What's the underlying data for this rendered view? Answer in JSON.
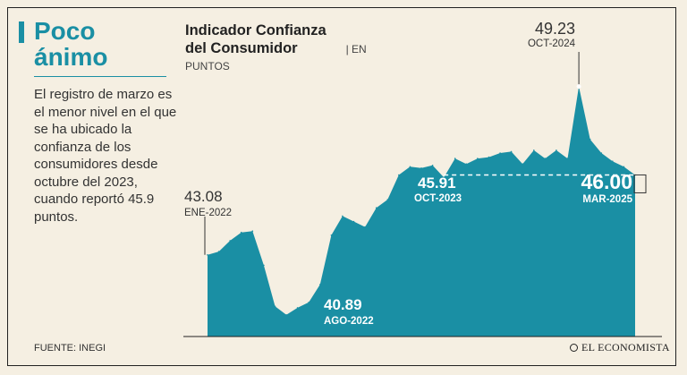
{
  "headline": "Poco ánimo",
  "description": "El registro de marzo es el menor nivel en el que se ha ubicado la confianza de los consumidores desde octubre del 2023, cuando reportó 45.9 puntos.",
  "chart_title": "Indicador Confianza del Consumidor",
  "chart_unit_a": "| EN",
  "chart_unit_b": "PUNTOS",
  "source": "FUENTE: INEGI",
  "brand": "EL ECONOMISTA",
  "colors": {
    "accent": "#1a8fa4",
    "area": "#1a8fa4",
    "background": "#f5efe2",
    "text": "#333333"
  },
  "chart_data": {
    "type": "area",
    "title": "Indicador Confianza del Consumidor",
    "ylabel": "PUNTOS",
    "ylim": [
      40.1,
      50.1
    ],
    "grid": false,
    "x": [
      "2022-01",
      "2022-02",
      "2022-03",
      "2022-04",
      "2022-05",
      "2022-06",
      "2022-07",
      "2022-08",
      "2022-09",
      "2022-10",
      "2022-11",
      "2022-12",
      "2023-01",
      "2023-02",
      "2023-03",
      "2023-04",
      "2023-05",
      "2023-06",
      "2023-07",
      "2023-08",
      "2023-09",
      "2023-10",
      "2023-11",
      "2023-12",
      "2024-01",
      "2024-02",
      "2024-03",
      "2024-04",
      "2024-05",
      "2024-06",
      "2024-07",
      "2024-08",
      "2024-09",
      "2024-10",
      "2024-11",
      "2024-12",
      "2025-01",
      "2025-02",
      "2025-03"
    ],
    "values": [
      43.08,
      43.2,
      43.6,
      43.9,
      43.95,
      42.7,
      41.2,
      40.89,
      41.15,
      41.35,
      42.0,
      43.8,
      44.5,
      44.3,
      44.1,
      44.8,
      45.1,
      46.0,
      46.3,
      46.25,
      46.35,
      45.91,
      46.6,
      46.4,
      46.6,
      46.65,
      46.8,
      46.85,
      46.4,
      46.9,
      46.6,
      46.9,
      46.6,
      49.23,
      47.3,
      46.8,
      46.5,
      46.3,
      46.0
    ],
    "annotations": [
      {
        "value": "43.08",
        "label": "ENE-2022"
      },
      {
        "value": "40.89",
        "label": "AGO-2022"
      },
      {
        "value": "45.91",
        "label": "OCT-2023"
      },
      {
        "value": "49.23",
        "label": "OCT-2024"
      },
      {
        "value": "46.00",
        "label": "MAR-2025"
      }
    ]
  }
}
